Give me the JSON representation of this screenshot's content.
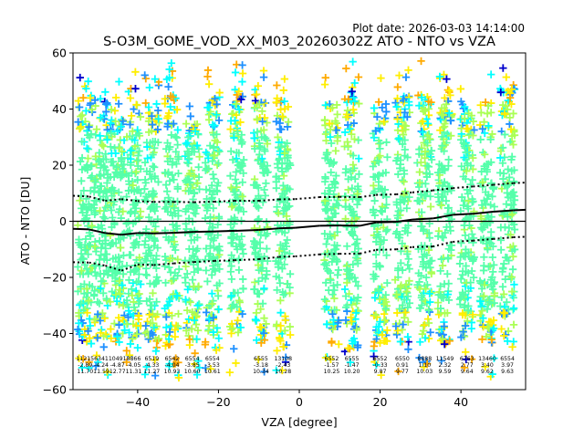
{
  "header": {
    "plot_date": "Plot date: 2026-03-03 14:14:00"
  },
  "chart_data": {
    "type": "scatter",
    "title": "S-O3M_GOME_VOD_XX_M03_20260302Z ATO - NTO vs VZA",
    "xlabel": "VZA [degree]",
    "ylabel": "ATO - NTO [DU]",
    "xlim": [
      -56,
      56
    ],
    "ylim": [
      -60,
      60
    ],
    "xticks": [
      -40,
      -20,
      0,
      20,
      40
    ],
    "yticks": [
      -60,
      -40,
      -20,
      0,
      20,
      40,
      60
    ],
    "zero_line": 0,
    "colors": {
      "bulk": "#55ffaa",
      "mid": "#aaff55",
      "outer_yellow": "#ffee00",
      "outer_orange": "#ffaa00",
      "cyan": "#00ffff",
      "blue": "#1e90ff",
      "navy": "#0000cc"
    },
    "columns": [
      {
        "vza": -53.0,
        "count": "11215",
        "mean": "-2.89",
        "std": "11.70",
        "top": 54,
        "bottom": -55
      },
      {
        "vza": -49.0,
        "count": "6341",
        "mean": "-4.24",
        "std": "11.59",
        "top": 57,
        "bottom": -56
      },
      {
        "vza": -45.0,
        "count": "10491",
        "mean": "-4.87",
        "std": "12.77",
        "top": 51,
        "bottom": -55
      },
      {
        "vza": -41.0,
        "count": "8866",
        "mean": "-4.05",
        "std": "11.31",
        "top": 54,
        "bottom": -56
      },
      {
        "vza": -36.5,
        "count": "6519",
        "mean": "-4.33",
        "std": "11.27",
        "top": 53,
        "bottom": -55
      },
      {
        "vza": -31.5,
        "count": "6542",
        "mean": "-4.04",
        "std": "10.93",
        "top": 58,
        "bottom": -56
      },
      {
        "vza": -26.5,
        "count": "6554",
        "mean": "-3.85",
        "std": "10.60",
        "top": 49,
        "bottom": -55
      },
      {
        "vza": -21.5,
        "count": "6554",
        "mean": "-3.53",
        "std": "10.61",
        "top": 57,
        "bottom": -55
      },
      {
        "vza": -15.5,
        "count": "",
        "mean": "",
        "std": "",
        "top": 58,
        "bottom": -54
      },
      {
        "vza": -9.5,
        "count": "6555",
        "mean": "-3.18",
        "std": "10.34",
        "top": 58,
        "bottom": -55
      },
      {
        "vza": -4.0,
        "count": "13108",
        "mean": "-2.43",
        "std": "10.28",
        "top": 57,
        "bottom": -55
      },
      {
        "vza": 8.0,
        "count": "6552",
        "mean": "-1.57",
        "std": "10.25",
        "top": 54,
        "bottom": -52
      },
      {
        "vza": 13.0,
        "count": "6555",
        "mean": "-1.47",
        "std": "10.20",
        "top": 57,
        "bottom": -57
      },
      {
        "vza": 20.0,
        "count": "6552",
        "mean": "-0.33",
        "std": "9.87",
        "top": 57,
        "bottom": -55
      },
      {
        "vza": 25.5,
        "count": "6550",
        "mean": "0.91",
        "std": "9.77",
        "top": 57,
        "bottom": -55
      },
      {
        "vza": 31.0,
        "count": "8888",
        "mean": "1.10",
        "std": "10.03",
        "top": 58,
        "bottom": -55
      },
      {
        "vza": 36.0,
        "count": "11549",
        "mean": "2.32",
        "std": "9.59",
        "top": 56,
        "bottom": -56
      },
      {
        "vza": 41.5,
        "count": "6763",
        "mean": "2.77",
        "std": "9.64",
        "top": 54,
        "bottom": -54
      },
      {
        "vza": 46.5,
        "count": "13460",
        "mean": "3.40",
        "std": "9.62",
        "top": 55,
        "bottom": -56
      },
      {
        "vza": 51.5,
        "count": "6554",
        "mean": "3.97",
        "std": "9.63",
        "top": 60,
        "bottom": -53
      }
    ],
    "mean_line": [
      [
        -56,
        -2.7
      ],
      [
        -52,
        -2.9
      ],
      [
        -48,
        -4.2
      ],
      [
        -44,
        -4.8
      ],
      [
        -40,
        -4.2
      ],
      [
        -36,
        -4.3
      ],
      [
        -31,
        -4.1
      ],
      [
        -26,
        -3.8
      ],
      [
        -21,
        -3.6
      ],
      [
        -16,
        -3.4
      ],
      [
        -10,
        -3.1
      ],
      [
        -5,
        -2.5
      ],
      [
        -1,
        -2.3
      ],
      [
        5,
        -1.6
      ],
      [
        10,
        -1.5
      ],
      [
        15,
        -1.6
      ],
      [
        19,
        -0.4
      ],
      [
        24,
        -0.2
      ],
      [
        28,
        0.6
      ],
      [
        33,
        1.0
      ],
      [
        38,
        2.3
      ],
      [
        43,
        2.7
      ],
      [
        48,
        3.4
      ],
      [
        53,
        3.9
      ],
      [
        56,
        4.1
      ]
    ],
    "upper_line": [
      [
        -56,
        9.1
      ],
      [
        -52,
        8.8
      ],
      [
        -48,
        7.3
      ],
      [
        -44,
        7.9
      ],
      [
        -40,
        7.2
      ],
      [
        -36,
        6.9
      ],
      [
        -31,
        6.9
      ],
      [
        -26,
        6.8
      ],
      [
        -21,
        7.0
      ],
      [
        -16,
        7.3
      ],
      [
        -10,
        7.3
      ],
      [
        -5,
        7.8
      ],
      [
        -1,
        7.9
      ],
      [
        5,
        8.6
      ],
      [
        10,
        8.7
      ],
      [
        15,
        8.6
      ],
      [
        19,
        9.4
      ],
      [
        24,
        9.6
      ],
      [
        28,
        10.3
      ],
      [
        33,
        11.0
      ],
      [
        38,
        11.8
      ],
      [
        43,
        12.4
      ],
      [
        48,
        13.0
      ],
      [
        53,
        13.6
      ],
      [
        56,
        13.8
      ]
    ],
    "lower_line": [
      [
        -56,
        -14.6
      ],
      [
        -52,
        -14.7
      ],
      [
        -48,
        -15.8
      ],
      [
        -44,
        -17.6
      ],
      [
        -40,
        -15.4
      ],
      [
        -36,
        -15.6
      ],
      [
        -31,
        -15.0
      ],
      [
        -26,
        -14.5
      ],
      [
        -21,
        -14.1
      ],
      [
        -16,
        -13.9
      ],
      [
        -10,
        -13.5
      ],
      [
        -5,
        -12.7
      ],
      [
        -1,
        -12.5
      ],
      [
        5,
        -11.8
      ],
      [
        10,
        -11.6
      ],
      [
        15,
        -11.5
      ],
      [
        19,
        -10.2
      ],
      [
        24,
        -10.0
      ],
      [
        28,
        -9.2
      ],
      [
        33,
        -9.0
      ],
      [
        38,
        -7.3
      ],
      [
        43,
        -6.9
      ],
      [
        48,
        -6.3
      ],
      [
        53,
        -5.7
      ],
      [
        56,
        -5.5
      ]
    ]
  }
}
